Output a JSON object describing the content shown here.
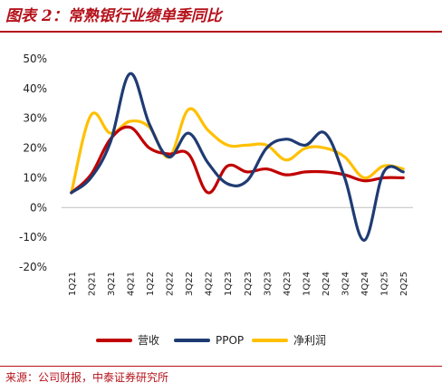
{
  "title": "图表 2：常熟银行业绩单季同比",
  "source": "来源：公司财报，中泰证券研究所",
  "chart_data": {
    "type": "line",
    "categories": [
      "1Q21",
      "2Q21",
      "3Q21",
      "4Q21",
      "1Q22",
      "2Q22",
      "3Q22",
      "4Q22",
      "1Q23",
      "2Q23",
      "3Q23",
      "4Q23",
      "1Q24",
      "2Q24",
      "3Q24",
      "4Q24",
      "1Q25",
      "2Q25"
    ],
    "series": [
      {
        "name": "营收",
        "color": "#c00000",
        "values": [
          5,
          11,
          23,
          27,
          20,
          18,
          18,
          5,
          14,
          12,
          13,
          11,
          12,
          12,
          11,
          9,
          10,
          10
        ]
      },
      {
        "name": "PPOP",
        "color": "#1f3b73",
        "values": [
          5,
          10,
          22,
          45,
          28,
          17,
          25,
          15,
          8,
          9,
          20,
          23,
          21,
          25,
          10,
          -11,
          12,
          12
        ]
      },
      {
        "name": "净利润",
        "color": "#ffc000",
        "values": [
          5,
          31,
          25,
          29,
          27,
          17,
          33,
          26,
          21,
          21,
          21,
          16,
          20,
          20,
          17,
          10,
          14,
          13
        ]
      }
    ],
    "y_ticks": [
      "50%",
      "40%",
      "30%",
      "20%",
      "10%",
      "0%",
      "-10%",
      "-20%"
    ],
    "ylim": [
      -20,
      50
    ],
    "grid": false,
    "legend_position": "bottom"
  }
}
